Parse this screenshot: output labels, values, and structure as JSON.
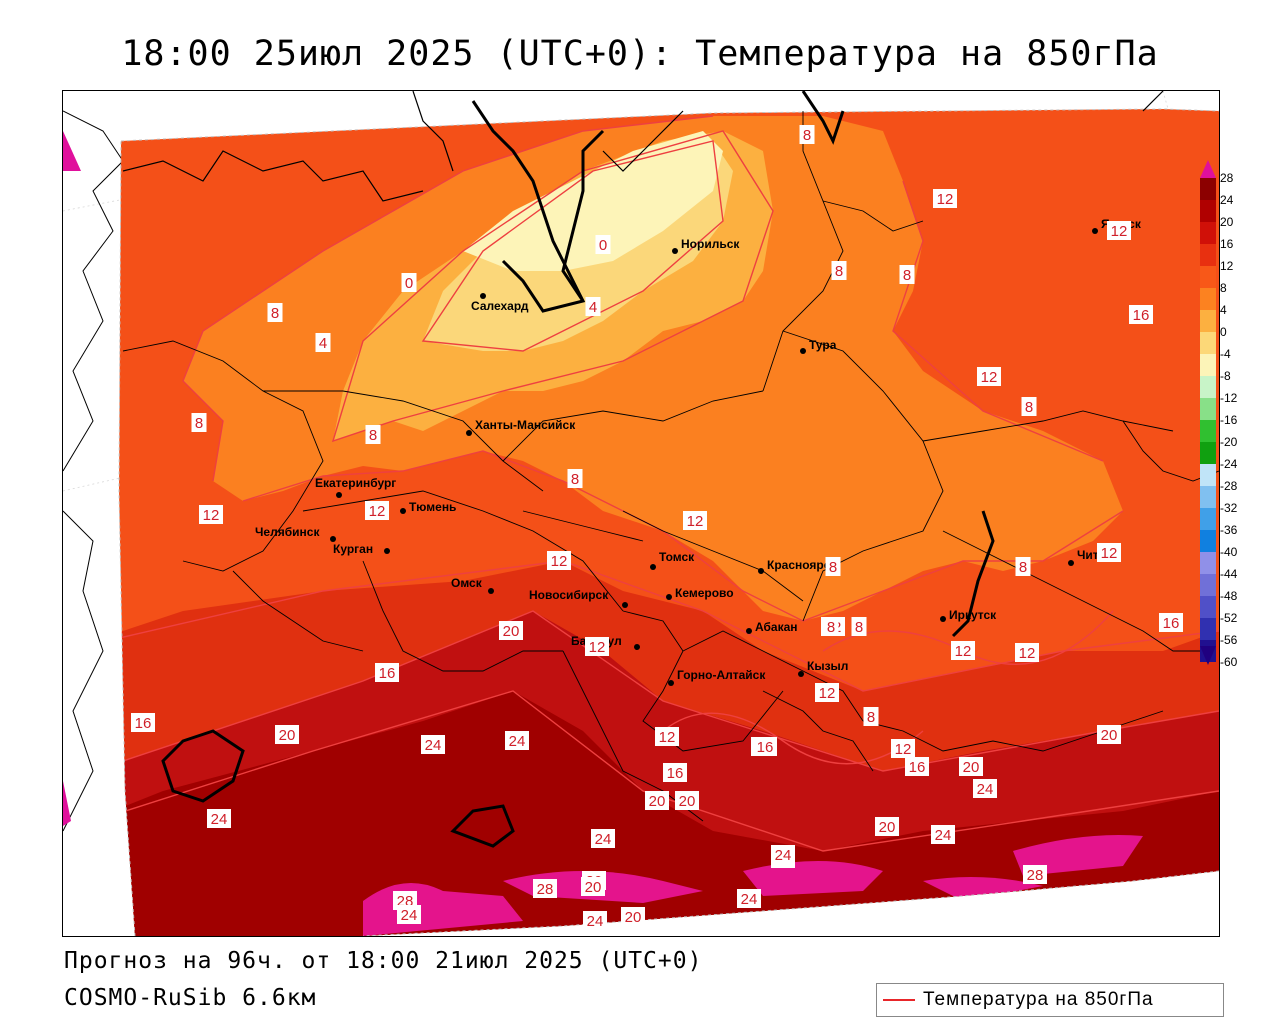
{
  "title": "18:00 25июл 2025 (UTC+0): Температура на 850гПа",
  "footer": {
    "forecast": "Прогноз на 96ч. от 18:00 21июл 2025 (UTC+0)",
    "model": "COSMO-RuSib 6.6км"
  },
  "key": {
    "label": "Температура на 850гПа",
    "color": "#e8262a"
  },
  "colors": {
    "t28": "#e4148c",
    "t24": "#a00000",
    "t20": "#c01010",
    "t16": "#e03010",
    "t12": "#f45018",
    "t8": "#fb8020",
    "t4": "#fcb040",
    "t0": "#fbd77a",
    "tm4": "#fdf4b8",
    "isoline": "#ee4040",
    "border": "#000000"
  },
  "legend": {
    "ticks": [
      "28",
      "24",
      "20",
      "16",
      "12",
      "8",
      "4",
      "0",
      "-4",
      "-8",
      "-12",
      "-16",
      "-20",
      "-24",
      "-28",
      "-32",
      "-36",
      "-40",
      "-44",
      "-48",
      "-52",
      "-56",
      "-60"
    ],
    "colors": [
      "#8c0000",
      "#b00000",
      "#d01008",
      "#e83010",
      "#f85818",
      "#fc8220",
      "#fcb040",
      "#fcd878",
      "#fcf4b8",
      "#c8f4c8",
      "#88e088",
      "#30c030",
      "#10a010",
      "#c0e4f8",
      "#80c0f0",
      "#40a0e8",
      "#1080e0",
      "#9090e8",
      "#7070d8",
      "#5050c8",
      "#3030b0",
      "#201090"
    ],
    "top_arrow_color": "#e0109c",
    "bottom_arrow_color": "#200080"
  },
  "cities": [
    {
      "name": "Якутск"
    },
    {
      "name": "Норильск"
    },
    {
      "name": "Салехард"
    },
    {
      "name": "Тура"
    },
    {
      "name": "Ханты-Мансийск"
    },
    {
      "name": "Екатеринбург"
    },
    {
      "name": "Тюмень"
    },
    {
      "name": "Челябинск"
    },
    {
      "name": "Курган"
    },
    {
      "name": "Омск"
    },
    {
      "name": "Новосибирск"
    },
    {
      "name": "Томск"
    },
    {
      "name": "Кемерово"
    },
    {
      "name": "Красноярск"
    },
    {
      "name": "Абакан"
    },
    {
      "name": "Иркутск"
    },
    {
      "name": "Чита"
    },
    {
      "name": "Барнаул"
    },
    {
      "name": "Горно-Алтайск"
    },
    {
      "name": "Кызыл"
    }
  ],
  "isolabels": [
    "8",
    "12",
    "12",
    "8",
    "0",
    "4",
    "4",
    "0",
    "8",
    "16",
    "8",
    "8",
    "12",
    "8",
    "8",
    "12",
    "12",
    "8",
    "12",
    "12",
    "8",
    "8",
    "16",
    "12",
    "16",
    "20",
    "12",
    "12",
    "8",
    "8",
    "16",
    "20",
    "24",
    "24",
    "16",
    "20",
    "24",
    "12",
    "16",
    "20",
    "16",
    "16",
    "20",
    "24",
    "12",
    "20",
    "20",
    "24",
    "24",
    "20",
    "24",
    "28",
    "24",
    "28",
    "20",
    "24",
    "20",
    "24",
    "28",
    "24",
    "12",
    "12",
    "8",
    "12"
  ]
}
